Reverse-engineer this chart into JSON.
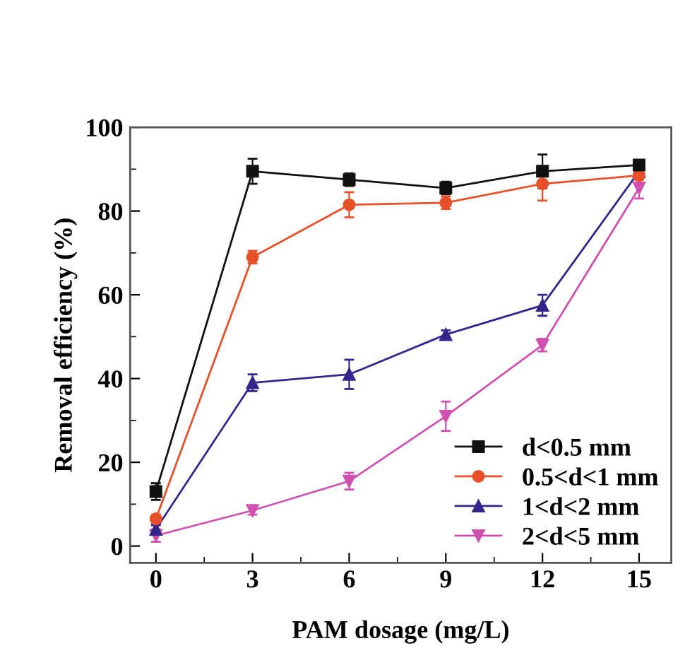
{
  "chart_data": {
    "type": "line",
    "xlabel": "PAM dosage (mg/L)",
    "ylabel": "Removal efficiency (%)",
    "x": [
      0,
      3,
      6,
      9,
      12,
      15
    ],
    "xlim": [
      -0.8,
      16
    ],
    "xticks": [
      0,
      3,
      6,
      9,
      12,
      15
    ],
    "ylim": [
      -4,
      100
    ],
    "yticks": [
      0,
      20,
      40,
      60,
      80,
      100
    ],
    "grid": false,
    "legend": "bottom right",
    "line_style": "solid",
    "series": [
      {
        "name": "d<0.5 mm",
        "color": "#111111",
        "marker": "square",
        "values": [
          13,
          89.5,
          87.5,
          85.5,
          89.5,
          91
        ],
        "errors": [
          2,
          3,
          1.5,
          1.5,
          4,
          1
        ]
      },
      {
        "name": "0.5<d<1 mm",
        "color": "#e8502a",
        "marker": "circle",
        "values": [
          6.5,
          69,
          81.5,
          82,
          86.5,
          88.5
        ],
        "errors": [
          1,
          1.5,
          3,
          1.5,
          4,
          1
        ]
      },
      {
        "name": "1<d<2 mm",
        "color": "#34258c",
        "marker": "triangle",
        "values": [
          4,
          39,
          41,
          50.5,
          57.5,
          89.5
        ],
        "errors": [
          1,
          2,
          3.5,
          1,
          2.5,
          null
        ]
      },
      {
        "name": "2<d<5 mm",
        "color": "#d050b0",
        "marker": "triangle_down",
        "values": [
          2.5,
          8.5,
          15.5,
          31,
          48,
          85.5
        ],
        "errors": [
          1.5,
          1,
          2,
          3.5,
          1.5,
          2.5
        ]
      }
    ]
  }
}
